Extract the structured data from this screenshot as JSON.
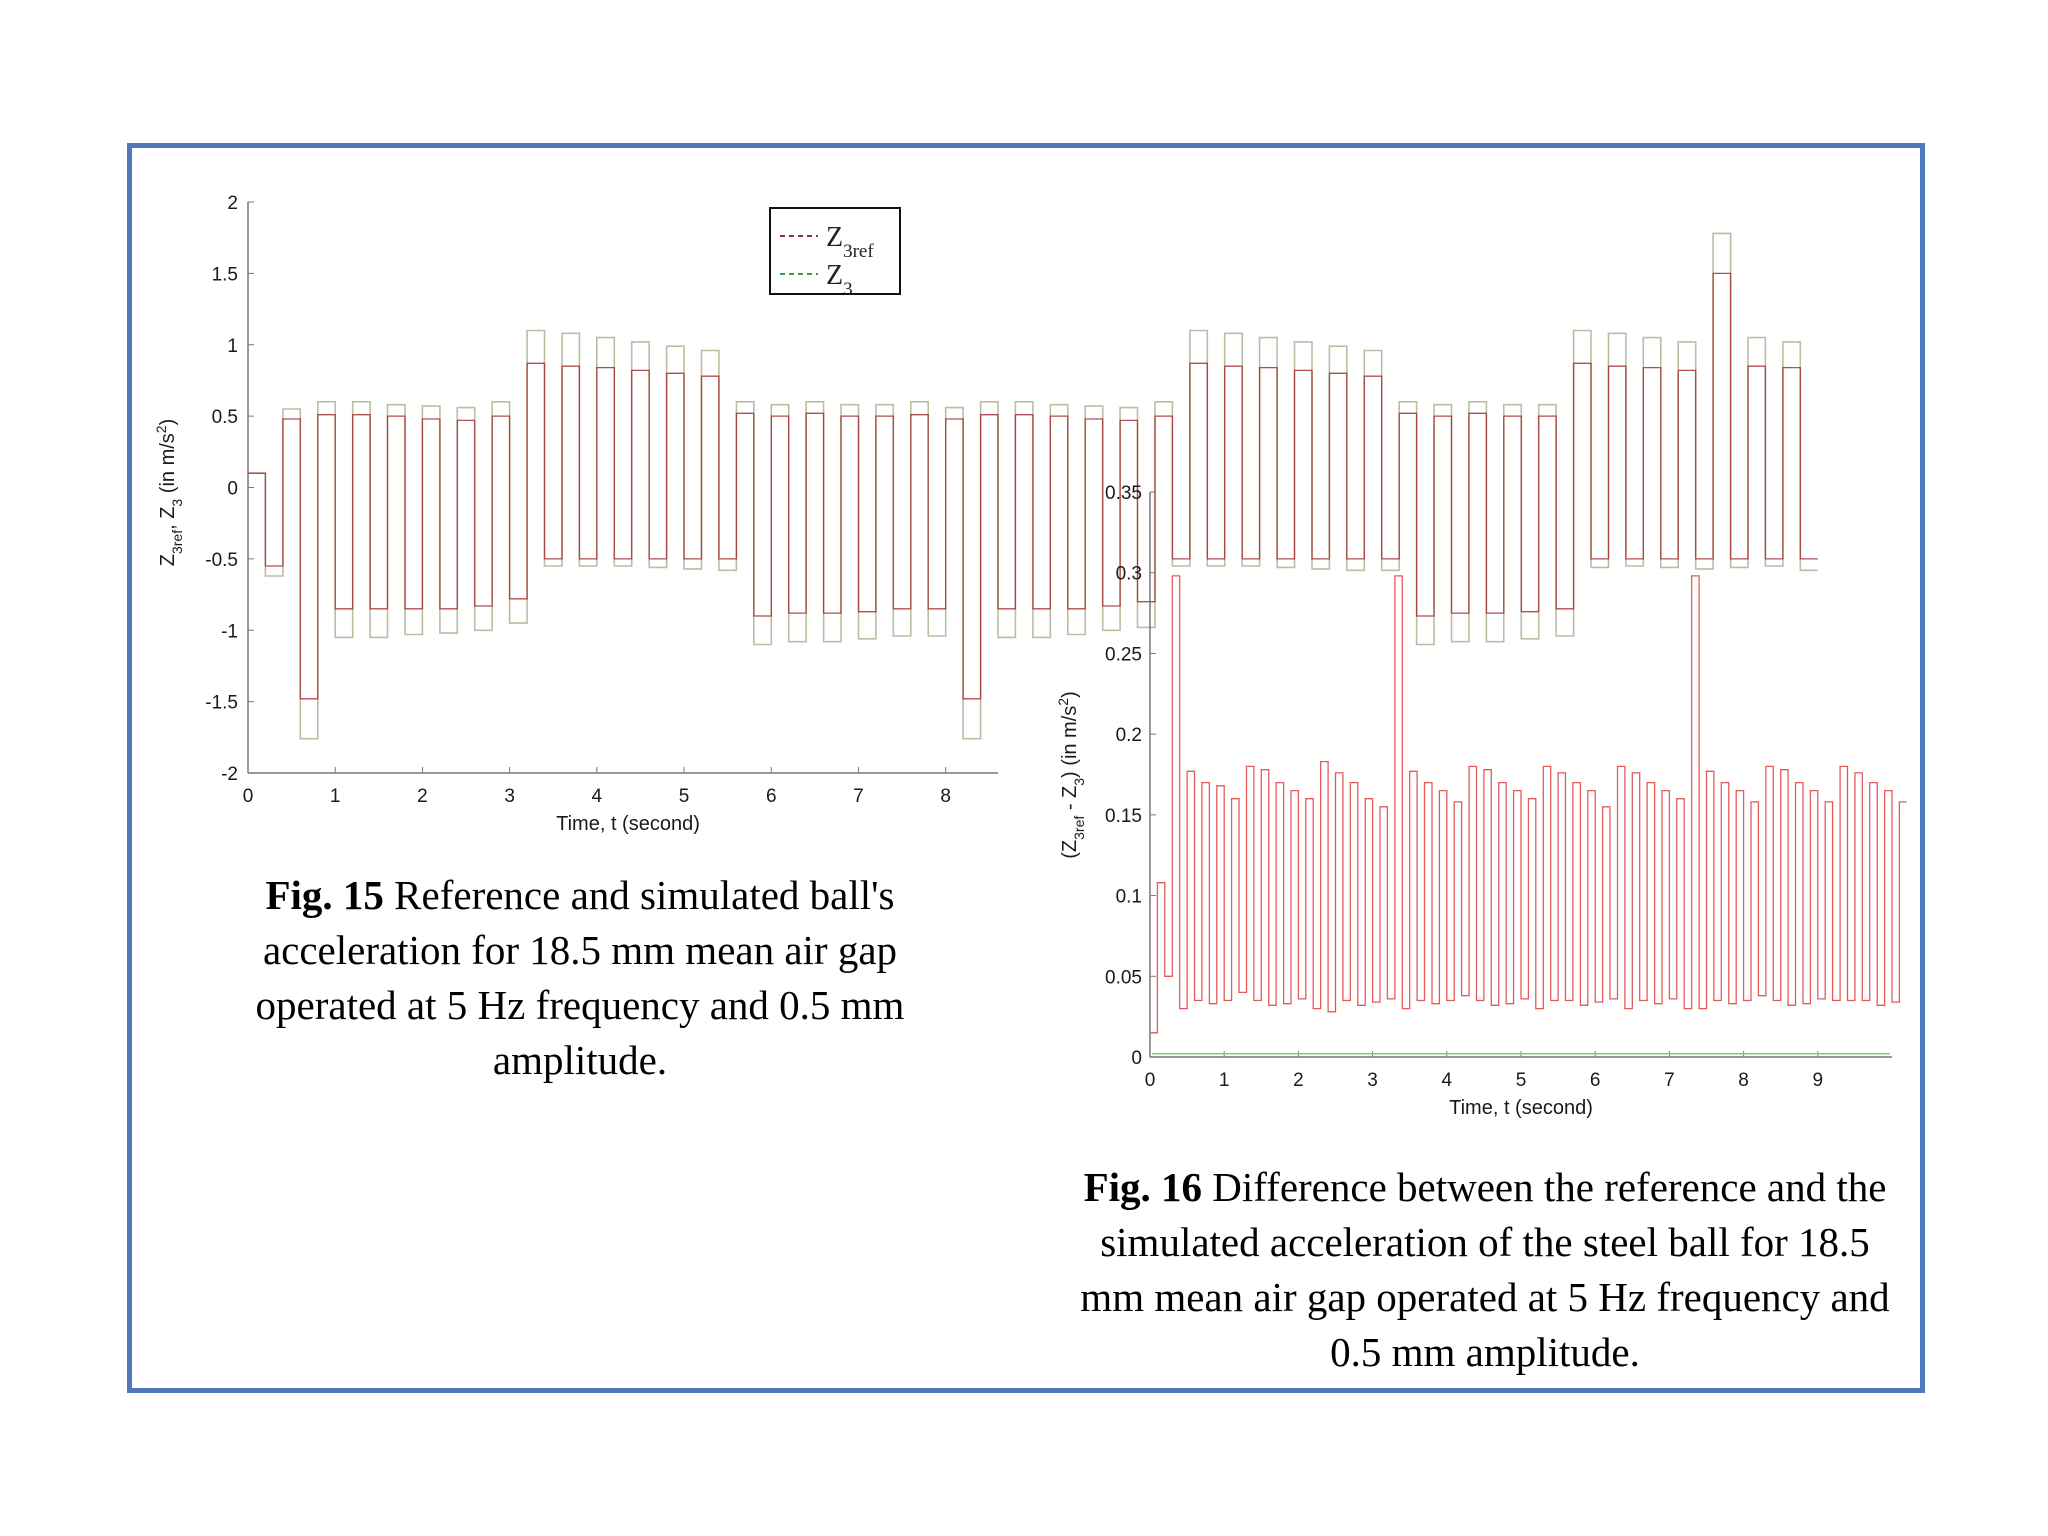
{
  "fig15": {
    "caption_num": "Fig. 15",
    "caption_text": " Reference and simulated ball's acceleration for 18.5 mm mean air gap operated at 5 Hz frequency and 0.5 mm amplitude.",
    "chart_data": {
      "type": "line",
      "xlabel": "Time, t (second)",
      "ylabel_parts": [
        "Z",
        "3ref",
        ", Z",
        "3",
        " (in m/s",
        "2",
        ")"
      ],
      "xlim": [
        0,
        8.6
      ],
      "ylim": [
        -2,
        2
      ],
      "xticks": [
        "0",
        "1",
        "2",
        "3",
        "4",
        "5",
        "6",
        "7",
        "8"
      ],
      "yticks": [
        "2",
        "1.5",
        "1",
        "0.5",
        "0",
        "-0.5",
        "-1",
        "-1.5",
        "-2"
      ],
      "ytick_values": [
        2,
        1.5,
        1,
        0.5,
        0,
        -0.5,
        -1,
        -1.5,
        -2
      ],
      "legend": [
        {
          "label": "Z",
          "sub": "3ref",
          "color": "#a23030"
        },
        {
          "label": "Z",
          "sub": "3",
          "color": "#2e9e4f"
        }
      ],
      "legend_position": "top-right",
      "step": 0.2,
      "series": [
        {
          "name": "Z3ref",
          "color": "#a23030",
          "values": [
            0.1,
            -0.55,
            0.48,
            -1.48,
            0.51,
            -0.85,
            0.51,
            -0.85,
            0.5,
            -0.85,
            0.48,
            -0.85,
            0.47,
            -0.83,
            0.5,
            -0.78,
            0.87,
            -0.5,
            0.85,
            -0.5,
            0.84,
            -0.5,
            0.82,
            -0.5,
            0.8,
            -0.5,
            0.78,
            -0.5,
            0.52,
            -0.9,
            0.5,
            -0.88,
            0.52,
            -0.88,
            0.5,
            -0.87,
            0.5,
            -0.85,
            0.51,
            -0.85,
            0.48,
            -1.48,
            0.51,
            -0.85,
            0.51,
            -0.85,
            0.5,
            -0.85,
            0.48,
            -0.83,
            0.47,
            -0.8,
            0.5,
            -0.5,
            0.87,
            -0.5,
            0.85,
            -0.5,
            0.84,
            -0.5,
            0.82,
            -0.5,
            0.8,
            -0.5,
            0.78,
            -0.5,
            0.52,
            -0.9,
            0.5,
            -0.88,
            0.52,
            -0.88,
            0.5,
            -0.87,
            0.5,
            -0.85,
            0.87,
            -0.5,
            0.85,
            -0.5,
            0.84,
            -0.5,
            0.82,
            -0.5,
            1.5,
            -0.5,
            0.85,
            -0.5,
            0.84,
            -0.5
          ]
        },
        {
          "name": "Z3",
          "color": "#2e9e4f",
          "values": [
            0.1,
            -0.62,
            0.55,
            -1.76,
            0.6,
            -1.05,
            0.6,
            -1.05,
            0.58,
            -1.03,
            0.57,
            -1.02,
            0.56,
            -1.0,
            0.6,
            -0.95,
            1.1,
            -0.55,
            1.08,
            -0.55,
            1.05,
            -0.55,
            1.02,
            -0.56,
            0.99,
            -0.57,
            0.96,
            -0.58,
            0.6,
            -1.1,
            0.58,
            -1.08,
            0.6,
            -1.08,
            0.58,
            -1.06,
            0.58,
            -1.04,
            0.6,
            -1.04,
            0.56,
            -1.76,
            0.6,
            -1.05,
            0.6,
            -1.05,
            0.58,
            -1.03,
            0.57,
            -1.0,
            0.56,
            -0.98,
            0.6,
            -0.55,
            1.1,
            -0.55,
            1.08,
            -0.55,
            1.05,
            -0.56,
            1.02,
            -0.57,
            0.99,
            -0.58,
            0.96,
            -0.58,
            0.6,
            -1.1,
            0.58,
            -1.08,
            0.6,
            -1.08,
            0.58,
            -1.06,
            0.58,
            -1.04,
            1.1,
            -0.56,
            1.08,
            -0.55,
            1.05,
            -0.56,
            1.02,
            -0.57,
            1.78,
            -0.56,
            1.05,
            -0.55,
            1.02,
            -0.58
          ]
        }
      ]
    }
  },
  "fig16": {
    "caption_num": "Fig. 16",
    "caption_text": " Difference between the reference and the simulated acceleration of the steel ball for 18.5 mm mean air gap operated at 5 Hz frequency and 0.5 mm amplitude.",
    "chart_data": {
      "type": "line",
      "xlabel": "Time, t (second)",
      "ylabel_parts": [
        "(Z",
        "3ref",
        " - Z",
        "3",
        ") (in m/s",
        "2",
        ")"
      ],
      "xlim": [
        0,
        10
      ],
      "ylim": [
        0,
        0.35
      ],
      "xticks": [
        "0",
        "1",
        "2",
        "3",
        "4",
        "5",
        "6",
        "7",
        "8",
        "9"
      ],
      "yticks": [
        "0.35",
        "0.3",
        "0.25",
        "0.2",
        "0.15",
        "0.1",
        "0.05",
        "0"
      ],
      "ytick_values": [
        0.35,
        0.3,
        0.25,
        0.2,
        0.15,
        0.1,
        0.05,
        0
      ],
      "step": 0.1,
      "series": [
        {
          "name": "Z3ref - Z3",
          "color": "#e35a5a",
          "values": [
            0.015,
            0.108,
            0.05,
            0.298,
            0.03,
            0.177,
            0.035,
            0.17,
            0.033,
            0.168,
            0.035,
            0.16,
            0.04,
            0.18,
            0.035,
            0.178,
            0.032,
            0.17,
            0.033,
            0.165,
            0.036,
            0.16,
            0.03,
            0.183,
            0.028,
            0.176,
            0.035,
            0.17,
            0.032,
            0.16,
            0.034,
            0.155,
            0.036,
            0.298,
            0.03,
            0.177,
            0.035,
            0.17,
            0.033,
            0.165,
            0.035,
            0.158,
            0.038,
            0.18,
            0.035,
            0.178,
            0.032,
            0.17,
            0.033,
            0.165,
            0.036,
            0.16,
            0.03,
            0.18,
            0.035,
            0.176,
            0.035,
            0.17,
            0.032,
            0.165,
            0.034,
            0.155,
            0.036,
            0.18,
            0.03,
            0.176,
            0.035,
            0.17,
            0.033,
            0.165,
            0.036,
            0.16,
            0.03,
            0.298,
            0.03,
            0.177,
            0.035,
            0.17,
            0.033,
            0.165,
            0.035,
            0.158,
            0.038,
            0.18,
            0.035,
            0.178,
            0.032,
            0.17,
            0.033,
            0.165,
            0.036,
            0.158,
            0.035,
            0.18,
            0.035,
            0.176,
            0.035,
            0.17,
            0.032,
            0.165,
            0.034,
            0.158
          ]
        },
        {
          "name": "zero",
          "color": "#74d27a",
          "values": []
        }
      ]
    }
  }
}
